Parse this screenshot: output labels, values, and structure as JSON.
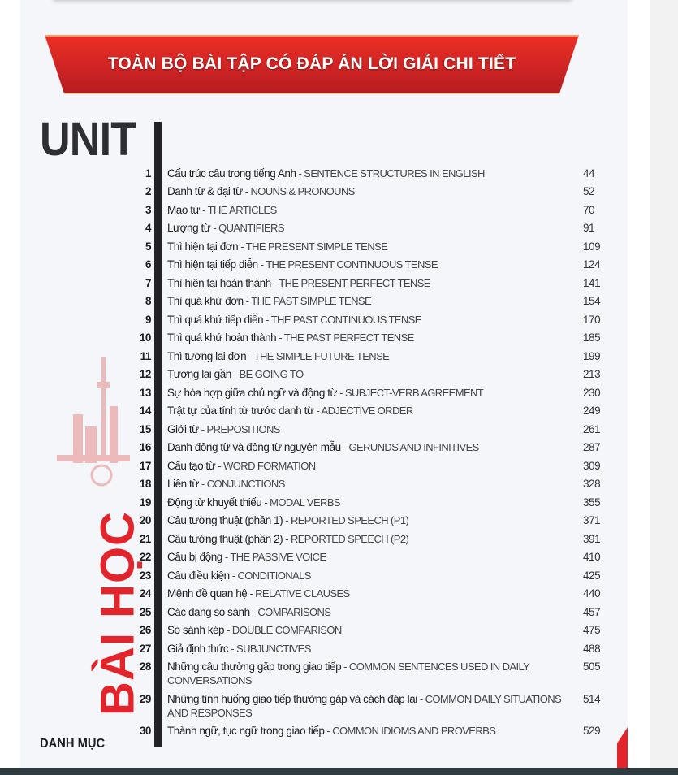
{
  "banner": {
    "title": "TOÀN BỘ BÀI TẬP CÓ ĐÁP ÁN LỜI GIẢI CHI TIẾT",
    "color": "#e3242b"
  },
  "heading": {
    "unit": "UNIT",
    "bai_hoc": "BÀI HỌC",
    "danh_muc": "DANH MỤC"
  },
  "colors": {
    "accent": "#e3242b",
    "text": "#1e1e22",
    "page_bg": "#f4f6fa"
  },
  "toc": [
    {
      "num": "1",
      "vi": "Cấu trúc câu trong tiếng Anh",
      "en": "SENTENCE STRUCTURES IN ENGLISH",
      "page": "44"
    },
    {
      "num": "2",
      "vi": "Danh từ & đại từ",
      "en": "NOUNS & PRONOUNS",
      "page": "52"
    },
    {
      "num": "3",
      "vi": "Mạo từ",
      "en": "THE ARTICLES",
      "page": "70"
    },
    {
      "num": "4",
      "vi": "Lượng từ",
      "en": "QUANTIFIERS",
      "page": "91"
    },
    {
      "num": "5",
      "vi": "Thì hiện tại đơn",
      "en": "THE PRESENT SIMPLE TENSE",
      "page": "109"
    },
    {
      "num": "6",
      "vi": "Thì hiện tại tiếp diễn",
      "en": "THE PRESENT CONTINUOUS TENSE",
      "page": "124"
    },
    {
      "num": "7",
      "vi": "Thì hiện tại hoàn thành",
      "en": "THE PRESENT PERFECT TENSE",
      "page": "141"
    },
    {
      "num": "8",
      "vi": "Thì quá khứ đơn",
      "en": "THE PAST SIMPLE TENSE",
      "page": "154"
    },
    {
      "num": "9",
      "vi": "Thì quá khứ tiếp diễn",
      "en": "THE PAST CONTINUOUS TENSE",
      "page": "170"
    },
    {
      "num": "10",
      "vi": "Thì quá khứ hoàn thành",
      "en": "THE PAST PERFECT TENSE",
      "page": "185"
    },
    {
      "num": "11",
      "vi": "Thì tương lai đơn",
      "en": "THE SIMPLE FUTURE TENSE",
      "page": "199"
    },
    {
      "num": "12",
      "vi": "Tương lai gần",
      "en": "BE GOING TO",
      "page": "213"
    },
    {
      "num": "13",
      "vi": "Sự hòa hợp giữa chủ ngữ và động từ",
      "en": "SUBJECT-VERB AGREEMENT",
      "page": "230"
    },
    {
      "num": "14",
      "vi": "Trật tự của tính từ trước danh từ",
      "en": "ADJECTIVE ORDER",
      "page": "249"
    },
    {
      "num": "15",
      "vi": "Giới từ",
      "en": "PREPOSITIONS",
      "page": "261"
    },
    {
      "num": "16",
      "vi": "Danh động từ và động từ nguyên mẫu",
      "en": "GERUNDS AND INFINITIVES",
      "page": "287"
    },
    {
      "num": "17",
      "vi": "Cấu tạo từ",
      "en": "WORD FORMATION",
      "page": "309"
    },
    {
      "num": "18",
      "vi": "Liên từ",
      "en": "CONJUNCTIONS",
      "page": "328"
    },
    {
      "num": "19",
      "vi": "Động từ khuyết thiếu",
      "en": "MODAL VERBS",
      "page": "355"
    },
    {
      "num": "20",
      "vi": "Câu tường thuật (phần 1)",
      "en": "REPORTED SPEECH (P1)",
      "page": "371"
    },
    {
      "num": "21",
      "vi": "Câu tường thuật (phần 2)",
      "en": "REPORTED SPEECH (P2)",
      "page": "391"
    },
    {
      "num": "22",
      "vi": "Câu bị động",
      "en": "THE PASSIVE VOICE",
      "page": "410"
    },
    {
      "num": "23",
      "vi": "Câu điều kiện",
      "en": "CONDITIONALS",
      "page": "425"
    },
    {
      "num": "24",
      "vi": "Mệnh đề quan hệ",
      "en": "RELATIVE CLAUSES",
      "page": "440"
    },
    {
      "num": "25",
      "vi": "Các dạng so sánh",
      "en": "COMPARISONS",
      "page": "457"
    },
    {
      "num": "26",
      "vi": "So sánh kép",
      "en": "DOUBLE COMPARISON",
      "page": "475"
    },
    {
      "num": "27",
      "vi": "Giả định thức",
      "en": "SUBJUNCTIVES",
      "page": "488"
    },
    {
      "num": "28",
      "vi": "Những câu thường gặp trong giao tiếp",
      "en": "COMMON SENTENCES USED IN DAILY CONVERSATIONS",
      "page": "505"
    },
    {
      "num": "29",
      "vi": "Những tình huống giao tiếp thường gặp và cách đáp lại",
      "en": "COMMON DAILY SITUATIONS AND RESPONSES",
      "page": "514"
    },
    {
      "num": "30",
      "vi": "Thành ngữ, tục ngữ trong giao tiếp",
      "en": "COMMON IDIOMS AND PROVERBS",
      "page": "529"
    }
  ]
}
